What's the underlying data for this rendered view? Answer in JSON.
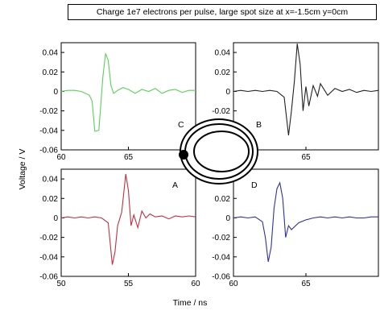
{
  "title": "Charge 1e7 electrons per pulse, large spot size at x=-1.5cm y=0cm",
  "xlabel": "Time / ns",
  "ylabel": "Voltage / V",
  "chart_data": [
    {
      "type": "line",
      "panel": "C",
      "label": "C",
      "color": "#5ad05a",
      "xlim": [
        60,
        70
      ],
      "ylim": [
        -0.06,
        0.05
      ],
      "xticks": [
        60,
        65
      ],
      "yticks": [
        "0.04",
        "0.02",
        "0",
        "-0.02",
        "-0.04",
        "-0.06"
      ],
      "x": [
        60,
        60.5,
        61,
        61.5,
        61.8,
        62.1,
        62.3,
        62.5,
        62.8,
        63.1,
        63.3,
        63.5,
        63.7,
        63.9,
        64.2,
        64.6,
        65,
        65.5,
        66,
        66.5,
        67,
        67.5,
        68,
        68.5,
        69,
        69.5,
        70
      ],
      "y": [
        0,
        0.001,
        0.001,
        0,
        -0.002,
        -0.004,
        -0.01,
        -0.041,
        -0.04,
        0.015,
        0.039,
        0.032,
        0.006,
        -0.002,
        0.001,
        0.004,
        0.002,
        -0.002,
        0.002,
        0.0,
        0.003,
        -0.002,
        0.001,
        0.002,
        -0.001,
        0.001,
        0.001
      ]
    },
    {
      "type": "line",
      "panel": "B",
      "label": "B",
      "color": "#222222",
      "xlim": [
        60,
        70
      ],
      "ylim": [
        -0.06,
        0.05
      ],
      "xticks": [
        60,
        65
      ],
      "yticks": [
        "0.04",
        "0.02",
        "0",
        "-0.02",
        "-0.04",
        "-0.06"
      ],
      "x": [
        60,
        60.5,
        61,
        61.5,
        62,
        62.5,
        63,
        63.5,
        63.8,
        64,
        64.2,
        64.4,
        64.6,
        64.8,
        65,
        65.2,
        65.5,
        65.8,
        66,
        66.5,
        67,
        67.5,
        68,
        68.5,
        69,
        69.5,
        70
      ],
      "y": [
        0,
        0.001,
        0,
        0.001,
        0,
        0.001,
        0.0,
        -0.006,
        -0.045,
        -0.02,
        0.01,
        0.049,
        0.028,
        -0.02,
        0.005,
        -0.015,
        0.006,
        -0.005,
        0.008,
        -0.004,
        0.003,
        0.0,
        0.002,
        -0.001,
        0.001,
        0.0,
        0.001
      ]
    },
    {
      "type": "line",
      "panel": "A",
      "label": "A",
      "color": "#c03040",
      "xlim": [
        50,
        60
      ],
      "ylim": [
        -0.06,
        0.05
      ],
      "xticks": [
        50,
        55,
        60
      ],
      "yticks": [
        "0.04",
        "0.02",
        "0",
        "-0.02",
        "-0.04",
        "-0.06"
      ],
      "x": [
        50,
        50.5,
        51,
        51.5,
        52,
        52.5,
        53,
        53.5,
        53.8,
        54,
        54.2,
        54.5,
        54.8,
        55,
        55.2,
        55.4,
        55.7,
        56,
        56.3,
        56.6,
        57,
        57.5,
        58,
        58.5,
        59,
        59.5,
        60
      ],
      "y": [
        0,
        0.001,
        0,
        0.001,
        0.0,
        0.001,
        0.0,
        -0.005,
        -0.048,
        -0.035,
        -0.008,
        0.006,
        0.045,
        0.028,
        -0.008,
        0.003,
        -0.01,
        0.007,
        0.0,
        0.004,
        0.001,
        0.002,
        -0.001,
        0.002,
        0.001,
        0.002,
        0.001
      ]
    },
    {
      "type": "line",
      "panel": "D",
      "label": "D",
      "color": "#3030a0",
      "xlim": [
        60,
        70
      ],
      "ylim": [
        -0.06,
        0.05
      ],
      "xticks": [
        60,
        65
      ],
      "yticks": [
        "0.04",
        "0.02",
        "0",
        "-0.02",
        "-0.04",
        "-0.06"
      ],
      "x": [
        60,
        60.5,
        61,
        61.5,
        62,
        62.2,
        62.4,
        62.6,
        62.8,
        63,
        63.2,
        63.4,
        63.6,
        63.8,
        64,
        64.5,
        65,
        65.5,
        66,
        66.5,
        67,
        67.5,
        68,
        68.5,
        69,
        69.5,
        70
      ],
      "y": [
        0,
        0.001,
        0,
        0.001,
        -0.004,
        -0.02,
        -0.045,
        -0.03,
        0.01,
        0.03,
        0.036,
        0.02,
        -0.02,
        -0.008,
        -0.012,
        -0.005,
        -0.002,
        0.0,
        0.001,
        0.0,
        0.001,
        0.0,
        0.001,
        0.0,
        0.0,
        0.001,
        0.001
      ]
    }
  ],
  "colors": {
    "axis": "#000000",
    "background": "#ffffff",
    "marker": "#000000"
  },
  "icon": "beam-pipe-cross-section"
}
